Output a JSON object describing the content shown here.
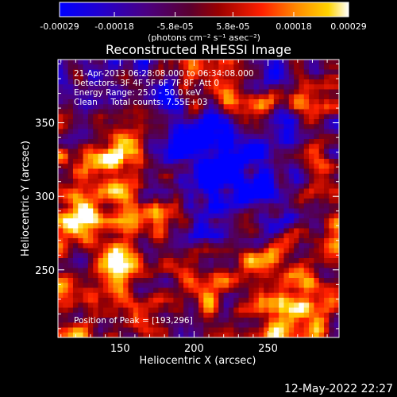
{
  "colorbar": {
    "tick_labels": [
      "-0.00029",
      "-0.00018",
      "-5.8e-05",
      "5.8e-05",
      "0.00018",
      "0.00029"
    ],
    "tick_values": [
      -0.00029,
      -0.00018,
      -5.8e-05,
      5.8e-05,
      0.00018,
      0.00029
    ],
    "range": [
      -0.00029,
      0.00029
    ],
    "unit_label": "(photons cm⁻² s⁻¹ asec⁻²)",
    "colors": [
      "#0000ff",
      "#3a00b0",
      "#4b0082",
      "#7a0000",
      "#e00000",
      "#ff6a00",
      "#ffc400",
      "#ffffff"
    ]
  },
  "chart_data": {
    "type": "heatmap",
    "title": "Reconstructed RHESSI Image",
    "xlabel": "Heliocentric X (arcsec)",
    "ylabel": "Heliocentric Y (arcsec)",
    "xlim": [
      108,
      298
    ],
    "ylim": [
      204,
      393
    ],
    "xticks": [
      150,
      200,
      250
    ],
    "yticks": [
      250,
      300,
      350
    ],
    "info_lines": [
      "21-Apr-2013 06:28:08.000 to 06:34:08.000",
      "Detectors: 3F 4F 5F 6F 7F 8F, Att 0",
      "Energy Range: 25.0 - 50.0 keV",
      "Clean     Total counts: 7.55E+03"
    ],
    "peak_label": "Position of Peak = [193,296]",
    "peak": [
      193,
      296
    ],
    "grid": false
  },
  "timestamp": "12-May-2022 22:27"
}
